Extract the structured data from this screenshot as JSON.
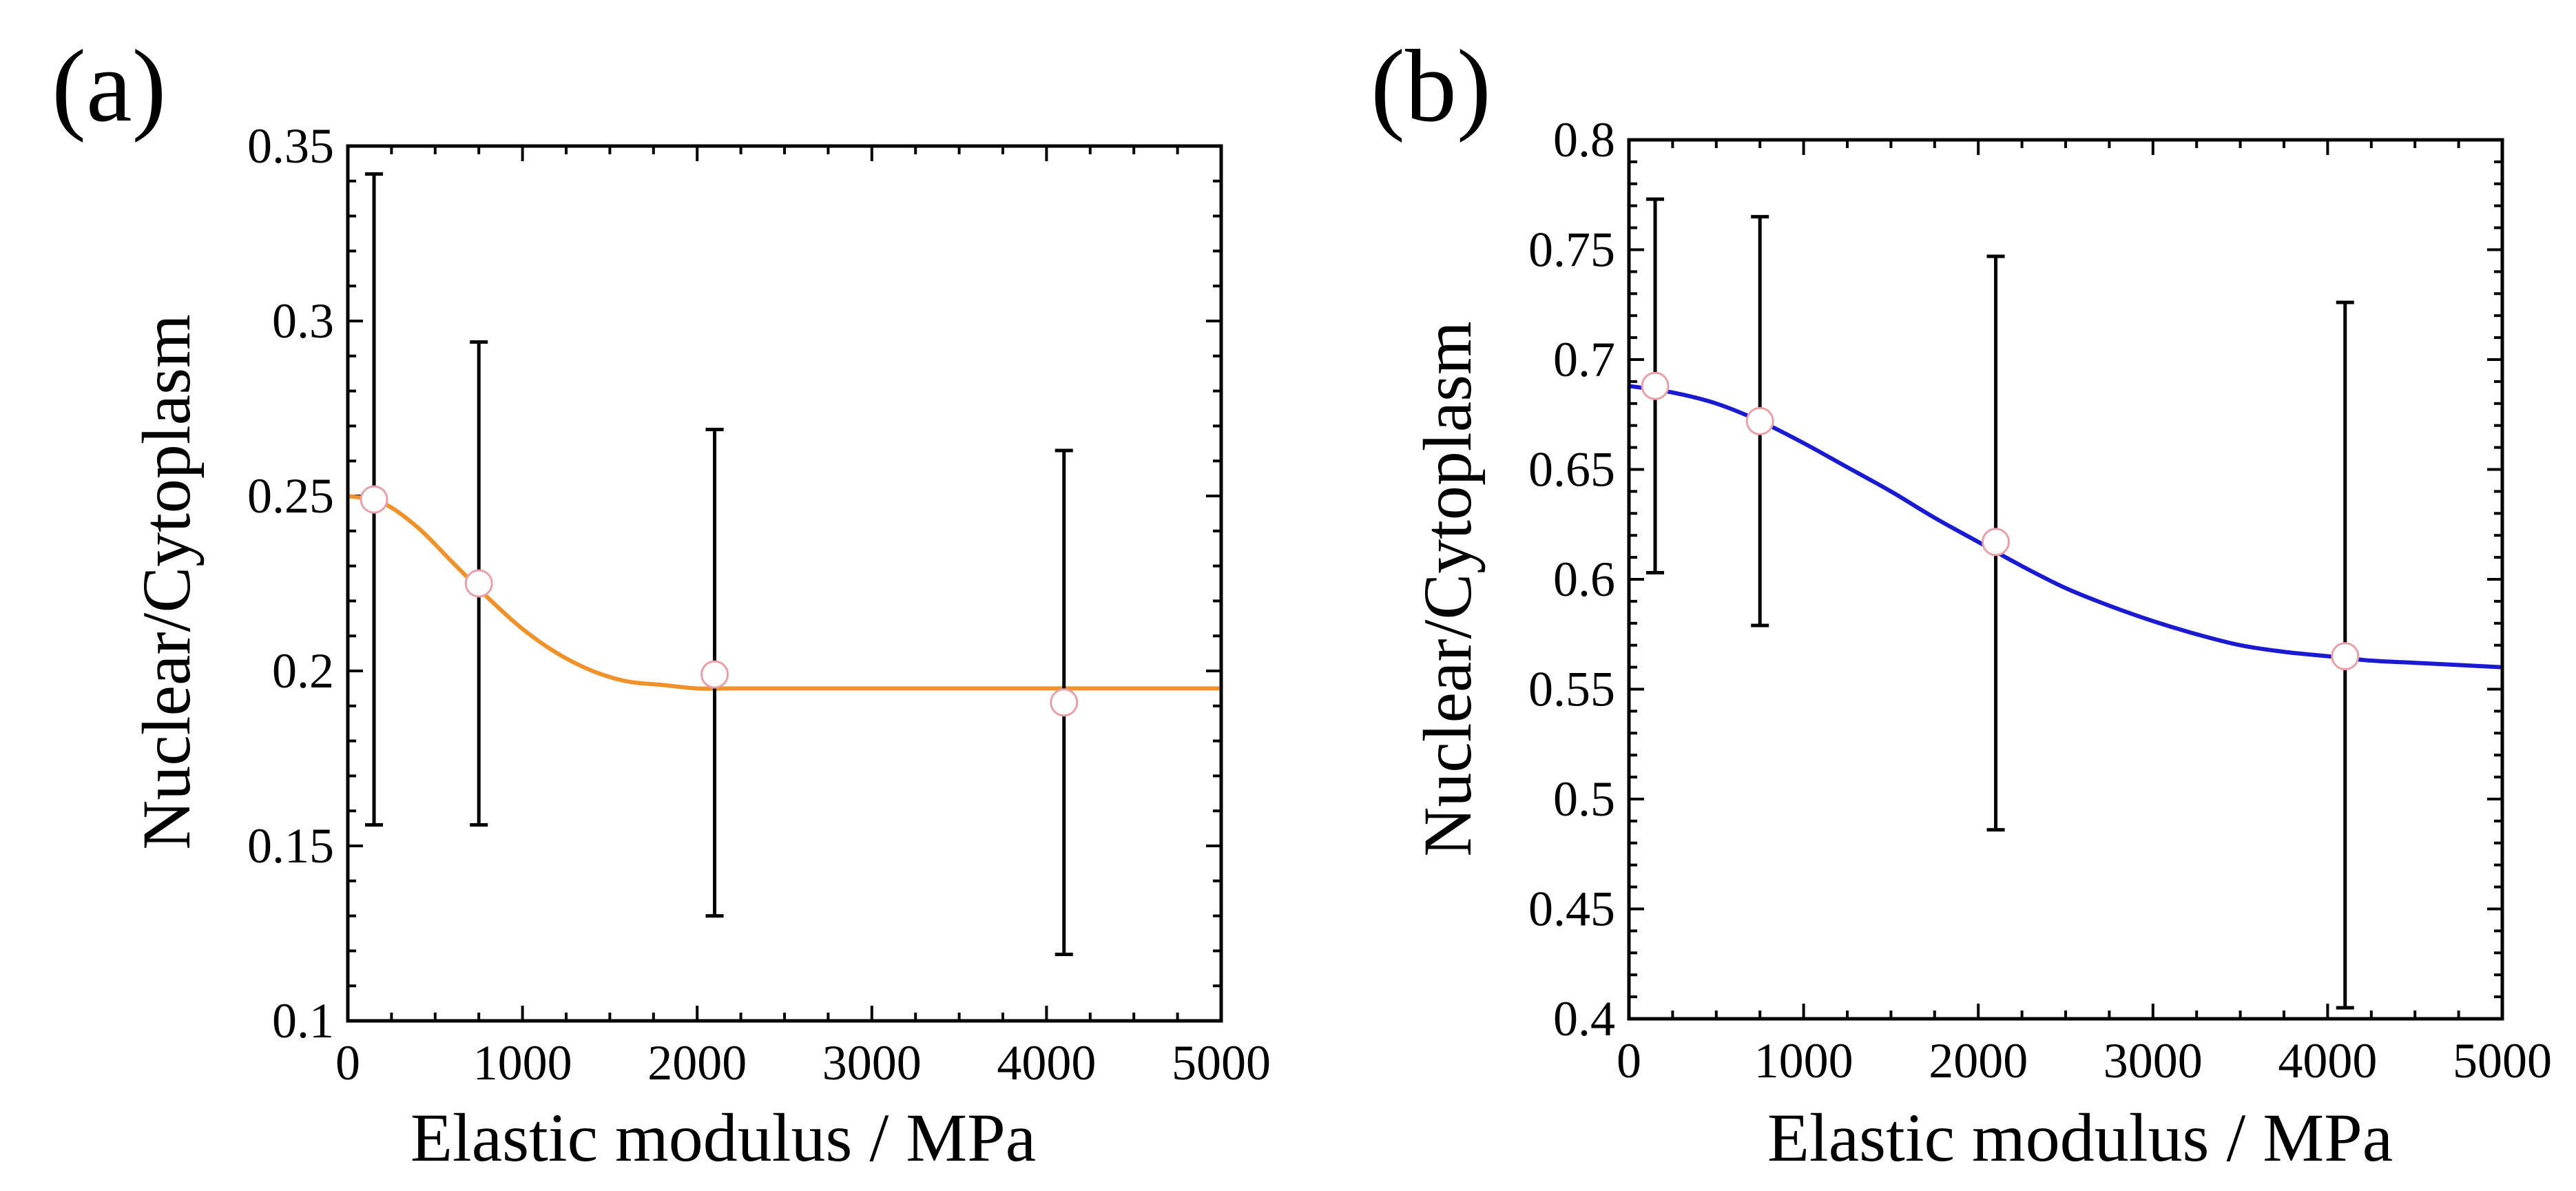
{
  "colors": {
    "panel_a_curve": "#f0922b",
    "panel_b_curve": "#1a1ad0",
    "marker_stroke": "#e8a0a8",
    "marker_fill": "#ffffff",
    "axis": "#000000"
  },
  "chart_data": [
    {
      "panel_label": "(a)",
      "type": "scatter",
      "xlabel": "Elastic modulus / MPa",
      "ylabel": "Nuclear/Cytoplasm",
      "xlim": [
        0,
        5000
      ],
      "ylim": [
        0.1,
        0.35
      ],
      "xticks": [
        0,
        1000,
        2000,
        3000,
        4000,
        5000
      ],
      "xtick_labels": [
        "0",
        "1000",
        "2000",
        "3000",
        "4000",
        "5000"
      ],
      "yticks": [
        0.1,
        0.15,
        0.2,
        0.25,
        0.3,
        0.35
      ],
      "ytick_labels": [
        "0.1",
        "0.15",
        "0.2",
        "0.25",
        "0.3",
        "0.35"
      ],
      "grid": false,
      "points": [
        {
          "x": 150,
          "y": 0.249,
          "err_low": 0.156,
          "err_high": 0.342
        },
        {
          "x": 750,
          "y": 0.225,
          "err_low": 0.156,
          "err_high": 0.294
        },
        {
          "x": 2100,
          "y": 0.199,
          "err_low": 0.13,
          "err_high": 0.269
        },
        {
          "x": 4100,
          "y": 0.191,
          "err_low": 0.119,
          "err_high": 0.263
        }
      ],
      "fit_curve": {
        "x": [
          0,
          200,
          400,
          600,
          800,
          1000,
          1200,
          1400,
          1600,
          1800,
          2000,
          2200,
          2500,
          3000,
          3500,
          4000,
          4500,
          5000
        ],
        "y": [
          0.25,
          0.248,
          0.241,
          0.231,
          0.221,
          0.212,
          0.205,
          0.2,
          0.197,
          0.196,
          0.195,
          0.195,
          0.195,
          0.195,
          0.195,
          0.195,
          0.195,
          0.195
        ]
      }
    },
    {
      "panel_label": "(b)",
      "type": "scatter",
      "xlabel": "Elastic modulus / MPa",
      "ylabel": "Nuclear/Cytoplasm",
      "xlim": [
        0,
        5000
      ],
      "ylim": [
        0.4,
        0.8
      ],
      "xticks": [
        0,
        1000,
        2000,
        3000,
        4000,
        5000
      ],
      "xtick_labels": [
        "0",
        "1000",
        "2000",
        "3000",
        "4000",
        "5000"
      ],
      "yticks": [
        0.4,
        0.45,
        0.5,
        0.55,
        0.6,
        0.65,
        0.7,
        0.75,
        0.8
      ],
      "ytick_labels": [
        "0.4",
        "0.45",
        "0.5",
        "0.55",
        "0.6",
        "0.65",
        "0.7",
        "0.75",
        "0.8"
      ],
      "grid": false,
      "points": [
        {
          "x": 150,
          "y": 0.688,
          "err_low": 0.603,
          "err_high": 0.773
        },
        {
          "x": 750,
          "y": 0.672,
          "err_low": 0.579,
          "err_high": 0.765
        },
        {
          "x": 2100,
          "y": 0.617,
          "err_low": 0.486,
          "err_high": 0.747
        },
        {
          "x": 4100,
          "y": 0.565,
          "err_low": 0.405,
          "err_high": 0.726
        }
      ],
      "fit_curve": {
        "x": [
          0,
          250,
          500,
          750,
          1000,
          1250,
          1500,
          1750,
          2000,
          2250,
          2500,
          2750,
          3000,
          3250,
          3500,
          3750,
          4000,
          4250,
          4500,
          4750,
          5000
        ],
        "y": [
          0.688,
          0.685,
          0.68,
          0.672,
          0.662,
          0.651,
          0.64,
          0.628,
          0.617,
          0.606,
          0.596,
          0.588,
          0.581,
          0.575,
          0.57,
          0.567,
          0.565,
          0.563,
          0.562,
          0.561,
          0.56
        ]
      }
    }
  ]
}
